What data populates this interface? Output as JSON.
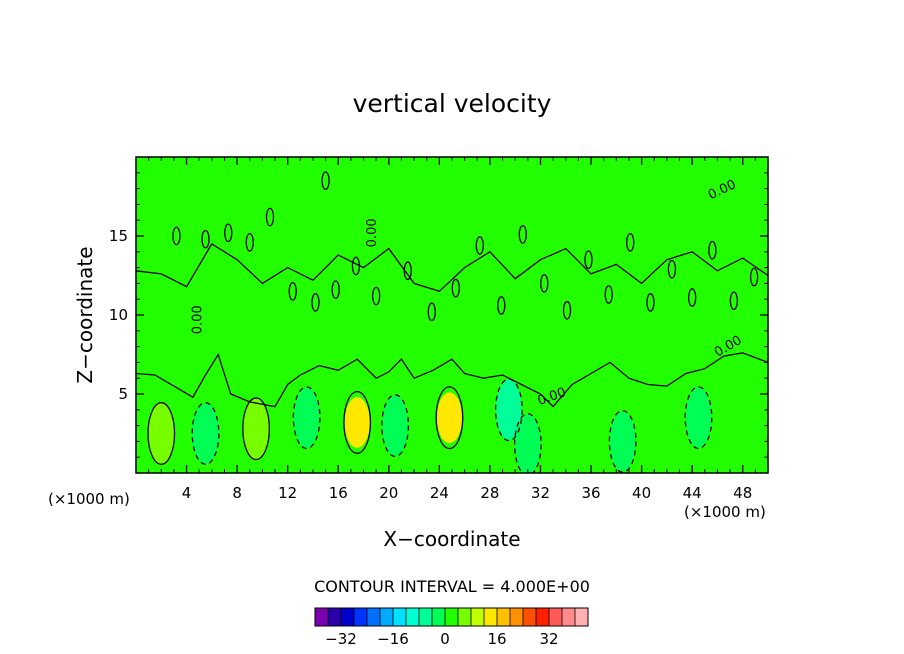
{
  "chart_data": {
    "type": "contour",
    "title": "vertical velocity",
    "xlabel": "X−coordinate",
    "ylabel": "Z−coordinate",
    "x_unit_left": "(×1000 m)",
    "x_unit_right": "(×1000 m)",
    "xlim": [
      0,
      50
    ],
    "ylim": [
      0,
      20
    ],
    "x_ticks": [
      4,
      8,
      12,
      16,
      20,
      24,
      28,
      32,
      36,
      40,
      44,
      48
    ],
    "x_tick_labels": [
      "4",
      "8",
      "12",
      "16",
      "20",
      "24",
      "28",
      "32",
      "36",
      "40",
      "44",
      "48"
    ],
    "y_ticks": [
      5,
      10,
      15
    ],
    "y_tick_labels": [
      "5",
      "10",
      "15"
    ],
    "contour_interval_text": "CONTOUR INTERVAL = 4.000E+00",
    "contour_interval": 4,
    "contour_line_labels": [
      "0.00",
      "0.00",
      "0.00",
      "0.00",
      "0.00"
    ],
    "background_color": "#22ff00",
    "colorbar": {
      "colors": [
        "#7a00b0",
        "#2a00a8",
        "#0000cc",
        "#0033ff",
        "#0070ff",
        "#00aaff",
        "#00e0ff",
        "#00ffd0",
        "#00ff99",
        "#00ff55",
        "#22ff00",
        "#77ff00",
        "#c0ff00",
        "#ffe800",
        "#ffc000",
        "#ff9000",
        "#ff5000",
        "#ff2000",
        "#ff5a5a",
        "#ff8a8a",
        "#ffb0b0"
      ],
      "tick_values": [
        -32,
        -16,
        0,
        16,
        32
      ],
      "tick_labels": [
        "−32",
        "−16",
        "0",
        "16",
        "32"
      ]
    },
    "features": [
      {
        "x": 2,
        "z": 2.5,
        "value": 4
      },
      {
        "x": 5.5,
        "z": 2.5,
        "value": -4
      },
      {
        "x": 9.5,
        "z": 2.8,
        "value": 4
      },
      {
        "x": 13.5,
        "z": 3.5,
        "value": -4
      },
      {
        "x": 17.5,
        "z": 3.2,
        "value": 12
      },
      {
        "x": 20.5,
        "z": 3.0,
        "value": -4
      },
      {
        "x": 24.8,
        "z": 3.5,
        "value": 12
      },
      {
        "x": 29.5,
        "z": 4.0,
        "value": -8
      },
      {
        "x": 31,
        "z": 1.8,
        "value": -4
      },
      {
        "x": 38.5,
        "z": 2.0,
        "value": -4
      },
      {
        "x": 44.5,
        "z": 3.5,
        "value": -4
      }
    ]
  }
}
